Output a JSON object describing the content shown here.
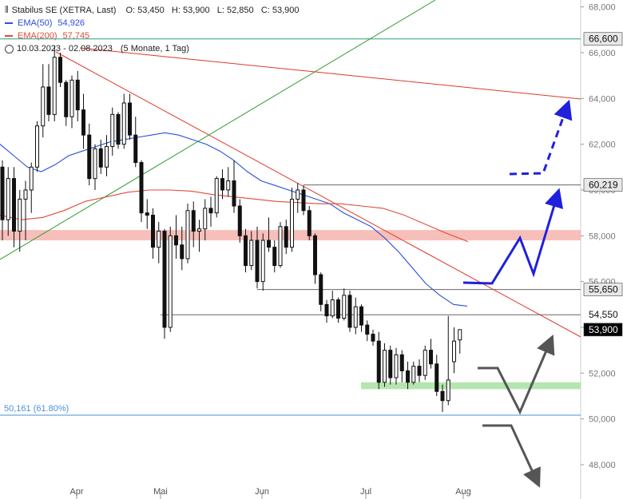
{
  "header": {
    "symbol": "Stabilus SE (XETRA, Last)",
    "ohlc": "O: 53,450   H: 53,900   L: 52,850   C: 53,900",
    "ema50_label": "EMA(50)",
    "ema50_value": "54,926",
    "ema200_label": "EMA(200)",
    "ema200_value": "57,745",
    "range": "10.03.2023 - 02.08.2023",
    "range_note": "(5 Monate, 1 Tag)"
  },
  "fib_label": "50,161 (61.80%)",
  "colors": {
    "ema50": "#2b4fd8",
    "ema200": "#e04a3a",
    "trend": "#e0392b",
    "uptrend": "#2e9b2e",
    "zone_red": "#f4a9a3",
    "zone_green": "#a8e0a0",
    "arrow_blue": "#2020dd",
    "arrow_gray": "#555555"
  },
  "chart_data": {
    "type": "candlestick",
    "ylim": [
      47000,
      68500
    ],
    "y_ticks": [
      "48,000",
      "50,000",
      "52,000",
      "54,000",
      "56,000",
      "58,000",
      "60,000",
      "62,000",
      "64,000",
      "66,000",
      "68,000"
    ],
    "x_ticks": [
      "Apr",
      "Mai",
      "Jun",
      "Jul",
      "Aug"
    ],
    "price_labels": [
      {
        "label": "66,600",
        "value": 66600,
        "style": "dark"
      },
      {
        "label": "60,219",
        "value": 60219,
        "style": "dark"
      },
      {
        "label": "55,650",
        "value": 55650,
        "style": "dark"
      },
      {
        "label": "54,550",
        "value": 54550,
        "style": "light"
      },
      {
        "label": "53,900",
        "value": 53900,
        "style": "black"
      }
    ],
    "candles": [
      [
        61000,
        61300,
        57800,
        58700
      ],
      [
        58700,
        61000,
        58000,
        60500
      ],
      [
        60500,
        61000,
        57500,
        58200
      ],
      [
        58200,
        60000,
        57300,
        59600
      ],
      [
        59600,
        60400,
        57800,
        60000
      ],
      [
        60000,
        61200,
        59000,
        61000
      ],
      [
        61000,
        63000,
        60800,
        62800
      ],
      [
        62800,
        65500,
        62300,
        64500
      ],
      [
        64500,
        65500,
        63000,
        63300
      ],
      [
        63300,
        66300,
        63000,
        65800
      ],
      [
        65800,
        66000,
        64500,
        64700
      ],
      [
        64700,
        64800,
        62800,
        63200
      ],
      [
        63200,
        65000,
        62700,
        64800
      ],
      [
        64800,
        65200,
        63000,
        63500
      ],
      [
        63500,
        64200,
        61800,
        62400
      ],
      [
        62400,
        62900,
        60200,
        60500
      ],
      [
        60500,
        62000,
        60000,
        61800
      ],
      [
        61800,
        62200,
        60700,
        61000
      ],
      [
        61000,
        62400,
        60600,
        61900
      ],
      [
        61900,
        63600,
        61500,
        63300
      ],
      [
        63300,
        63400,
        61800,
        62000
      ],
      [
        62000,
        64200,
        61800,
        63800
      ],
      [
        63800,
        64200,
        62200,
        62400
      ],
      [
        62400,
        63200,
        61000,
        61200
      ],
      [
        61200,
        61300,
        58600,
        59000
      ],
      [
        59000,
        59600,
        58300,
        58900
      ],
      [
        58900,
        59200,
        57000,
        57500
      ],
      [
        57500,
        58600,
        56800,
        58200
      ],
      [
        58200,
        58300,
        53500,
        54000
      ],
      [
        54000,
        58400,
        53800,
        58000
      ],
      [
        58000,
        58900,
        57000,
        57600
      ],
      [
        57600,
        58400,
        56500,
        57000
      ],
      [
        57000,
        59400,
        56800,
        59100
      ],
      [
        59100,
        59500,
        57500,
        58200
      ],
      [
        58200,
        58700,
        57300,
        58300
      ],
      [
        58300,
        59600,
        57800,
        59200
      ],
      [
        59200,
        59700,
        58400,
        59000
      ],
      [
        59000,
        60600,
        58800,
        60500
      ],
      [
        60500,
        60900,
        59600,
        60000
      ],
      [
        60000,
        61000,
        59700,
        60400
      ],
      [
        60400,
        61300,
        59000,
        59300
      ],
      [
        59300,
        59600,
        57700,
        58000
      ],
      [
        58000,
        58300,
        56400,
        56700
      ],
      [
        56700,
        58200,
        56500,
        57800
      ],
      [
        57800,
        58400,
        55700,
        56000
      ],
      [
        56000,
        58100,
        55600,
        57800
      ],
      [
        57800,
        58800,
        57300,
        57500
      ],
      [
        57500,
        57800,
        56400,
        56700
      ],
      [
        56700,
        58600,
        56600,
        58400
      ],
      [
        58400,
        58700,
        57200,
        57500
      ],
      [
        57500,
        60100,
        57300,
        59600
      ],
      [
        59600,
        60300,
        59000,
        60000
      ],
      [
        60000,
        60200,
        58900,
        59100
      ],
      [
        59100,
        59300,
        57800,
        58000
      ],
      [
        58000,
        58100,
        55900,
        56300
      ],
      [
        56300,
        56400,
        54700,
        55000
      ],
      [
        55000,
        55200,
        54200,
        54500
      ],
      [
        54500,
        55600,
        54400,
        55200
      ],
      [
        55200,
        55300,
        54200,
        54400
      ],
      [
        54400,
        55700,
        54300,
        55400
      ],
      [
        55400,
        55600,
        53800,
        54000
      ],
      [
        54000,
        55300,
        53700,
        54900
      ],
      [
        54900,
        55000,
        53800,
        54100
      ],
      [
        54100,
        54300,
        53400,
        53700
      ],
      [
        53700,
        53900,
        53200,
        53400
      ],
      [
        53400,
        53800,
        51300,
        51600
      ],
      [
        51600,
        53300,
        51400,
        53000
      ],
      [
        53000,
        53200,
        51500,
        51800
      ],
      [
        51800,
        53100,
        51500,
        52800
      ],
      [
        52800,
        53000,
        51600,
        52100
      ],
      [
        52100,
        52500,
        51300,
        51600
      ],
      [
        51600,
        52500,
        51500,
        52300
      ],
      [
        52300,
        52600,
        51600,
        51900
      ],
      [
        51900,
        53200,
        51700,
        53000
      ],
      [
        53000,
        53500,
        52200,
        52400
      ],
      [
        52400,
        52800,
        51000,
        51200
      ],
      [
        51200,
        51500,
        50300,
        50800
      ],
      [
        50800,
        54500,
        50600,
        51700
      ],
      [
        52500,
        54000,
        52000,
        53400
      ],
      [
        53450,
        53900,
        52850,
        53900
      ]
    ],
    "ema50": [
      62000,
      61500,
      61000,
      60800,
      61100,
      61500,
      61700,
      61900,
      62100,
      62200,
      62300,
      62400,
      62500,
      62400,
      62200,
      62000,
      61700,
      61300,
      60800,
      60400,
      60200,
      60000,
      59800,
      59600,
      59400,
      59000,
      58700,
      58400,
      57900,
      57300,
      56600,
      55900,
      55400,
      55000,
      54926
    ],
    "ema200": [
      58900,
      58700,
      58800,
      59100,
      59500,
      59700,
      59900,
      60000,
      60000,
      59950,
      59800,
      59700,
      59600,
      59500,
      59450,
      59400,
      59400,
      59300,
      59200,
      58900,
      58500,
      58100,
      57745
    ]
  }
}
